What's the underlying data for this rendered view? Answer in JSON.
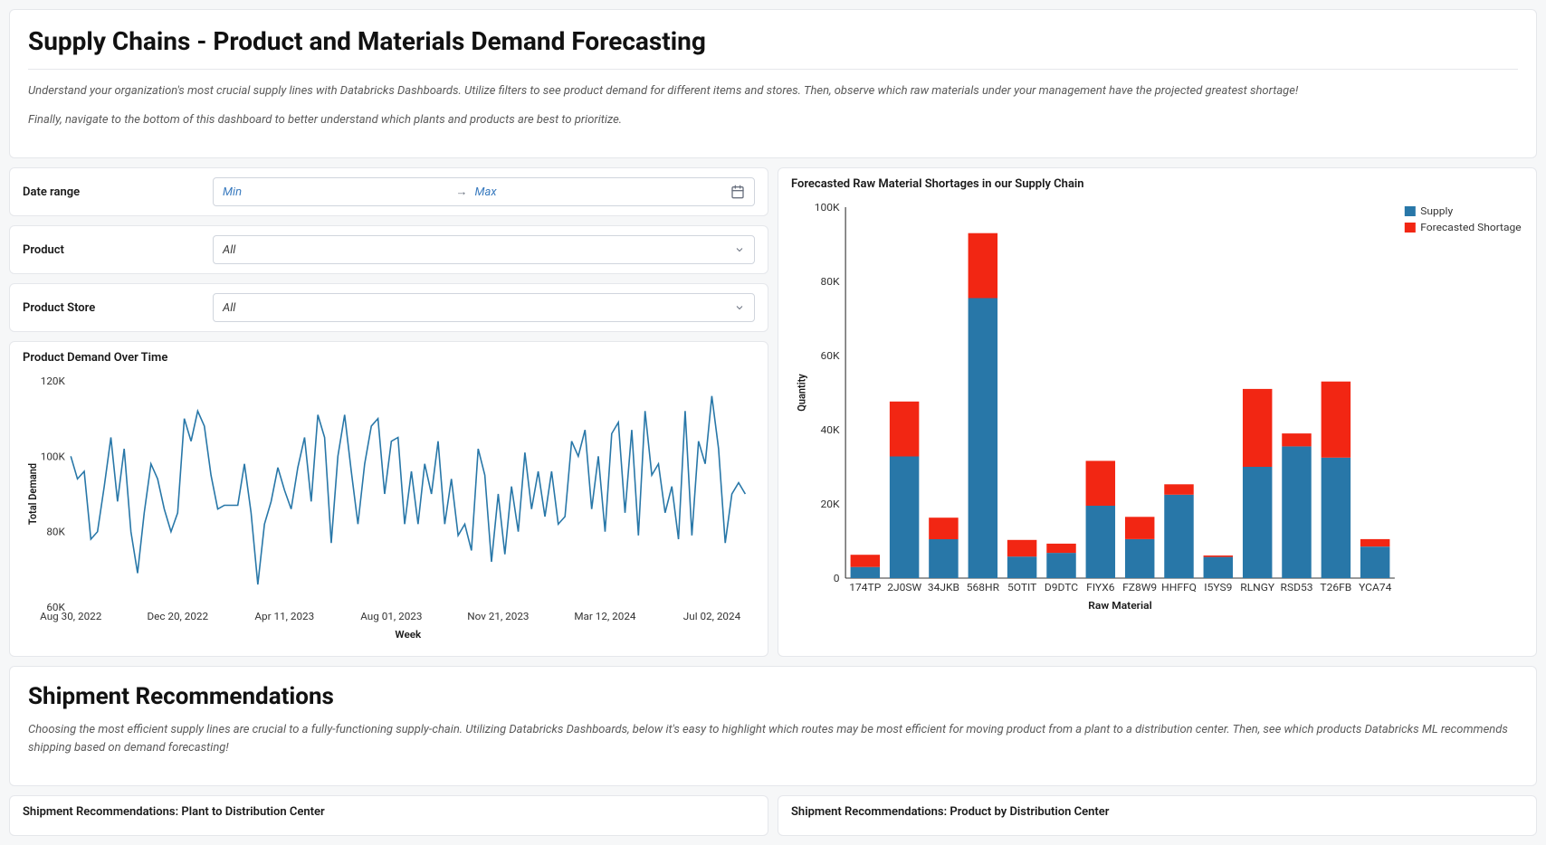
{
  "header": {
    "title": "Supply Chains - Product and Materials Demand Forecasting",
    "intro1": "Understand your organization's most crucial supply lines with Databricks Dashboards. Utilize filters to see product demand for different items and stores. Then, observe which raw materials under your management have the projected greatest shortage!",
    "intro2": "Finally, navigate to the bottom of this dashboard to better understand which plants and products are best to prioritize."
  },
  "filters": {
    "date_range": {
      "label": "Date range",
      "min_placeholder": "Min",
      "max_placeholder": "Max"
    },
    "product": {
      "label": "Product",
      "value": "All"
    },
    "product_store": {
      "label": "Product Store",
      "value": "All"
    }
  },
  "line_chart": {
    "title": "Product Demand Over Time",
    "type": "line",
    "xlabel": "Week",
    "ylabel": "Total Demand",
    "y_ticks": [
      60000,
      80000,
      100000,
      120000
    ],
    "y_tick_labels": [
      "60K",
      "80K",
      "100K",
      "120K"
    ],
    "ylim": [
      60000,
      120000
    ],
    "x_tick_labels": [
      "Aug 30, 2022",
      "Dec 20, 2022",
      "Apr 11, 2023",
      "Aug 01, 2023",
      "Nov 21, 2023",
      "Mar 12, 2024",
      "Jul 02, 2024"
    ],
    "x_tick_positions": [
      0,
      16,
      32,
      48,
      64,
      80,
      96
    ],
    "line_color": "#2877a8",
    "background_color": "#ffffff",
    "values": [
      100000,
      94000,
      96000,
      78000,
      80000,
      92000,
      105000,
      88000,
      102000,
      80000,
      69000,
      85000,
      98000,
      94000,
      86000,
      80000,
      85000,
      110000,
      104000,
      112000,
      108000,
      95000,
      86000,
      87000,
      87000,
      87000,
      98000,
      85000,
      66000,
      82000,
      88000,
      97000,
      91000,
      86000,
      97000,
      105000,
      88000,
      111000,
      105000,
      77000,
      100000,
      111000,
      96000,
      82000,
      98000,
      108000,
      110000,
      90000,
      104000,
      105000,
      82000,
      96000,
      82000,
      98000,
      90000,
      104000,
      82000,
      94000,
      79000,
      82000,
      75000,
      102000,
      95000,
      72000,
      90000,
      74000,
      92000,
      80000,
      101000,
      86000,
      96000,
      84000,
      96000,
      82000,
      84000,
      104000,
      100000,
      107000,
      86000,
      100000,
      80000,
      106000,
      109000,
      85000,
      107000,
      79000,
      112000,
      95000,
      98000,
      85000,
      92000,
      78000,
      112000,
      79000,
      104000,
      98000,
      116000,
      102000,
      77000,
      90000,
      93000,
      90000
    ]
  },
  "bar_chart": {
    "title": "Forecasted Raw Material Shortages in our Supply Chain",
    "type": "stacked-bar",
    "xlabel": "Raw Material",
    "ylabel": "Quantity",
    "y_ticks": [
      0,
      20000,
      40000,
      60000,
      80000,
      100000
    ],
    "y_tick_labels": [
      "0",
      "20K",
      "40K",
      "60K",
      "80K",
      "100K"
    ],
    "ylim": [
      0,
      100000
    ],
    "categories": [
      "174TP",
      "2J0SW",
      "34JKB",
      "568HR",
      "5OTIT",
      "D9DTC",
      "FIYX6",
      "FZ8W9",
      "HHFFQ",
      "I5YS9",
      "RLNGY",
      "RSD53",
      "T26FB",
      "YCA74"
    ],
    "series": [
      {
        "name": "Supply",
        "color": "#2877a8",
        "values": [
          3000,
          32800,
          10500,
          75500,
          5800,
          6800,
          19500,
          10500,
          22500,
          5700,
          30000,
          35500,
          32500,
          8500
        ]
      },
      {
        "name": "Forecasted Shortage",
        "color": "#f22613",
        "values": [
          3300,
          14800,
          5800,
          17500,
          4500,
          2500,
          12100,
          6000,
          2800,
          400,
          21000,
          3500,
          20500,
          2000
        ]
      }
    ],
    "legend": [
      {
        "label": "Supply",
        "color": "#2877a8"
      },
      {
        "label": "Forecasted Shortage",
        "color": "#f22613"
      }
    ],
    "bar_width_ratio": 0.75,
    "background_color": "#ffffff"
  },
  "shipment": {
    "title": "Shipment Recommendations",
    "intro": "Choosing the most efficient supply lines are crucial to a fully-functioning supply-chain. Utilizing Databricks Dashboards, below it's easy to highlight which routes may be most efficient for moving product from a plant to a distribution center. Then, see which products Databricks ML recommends shipping based on demand forecasting!",
    "left_title": "Shipment Recommendations: Plant to Distribution Center",
    "right_title": "Shipment Recommendations: Product by Distribution Center"
  }
}
